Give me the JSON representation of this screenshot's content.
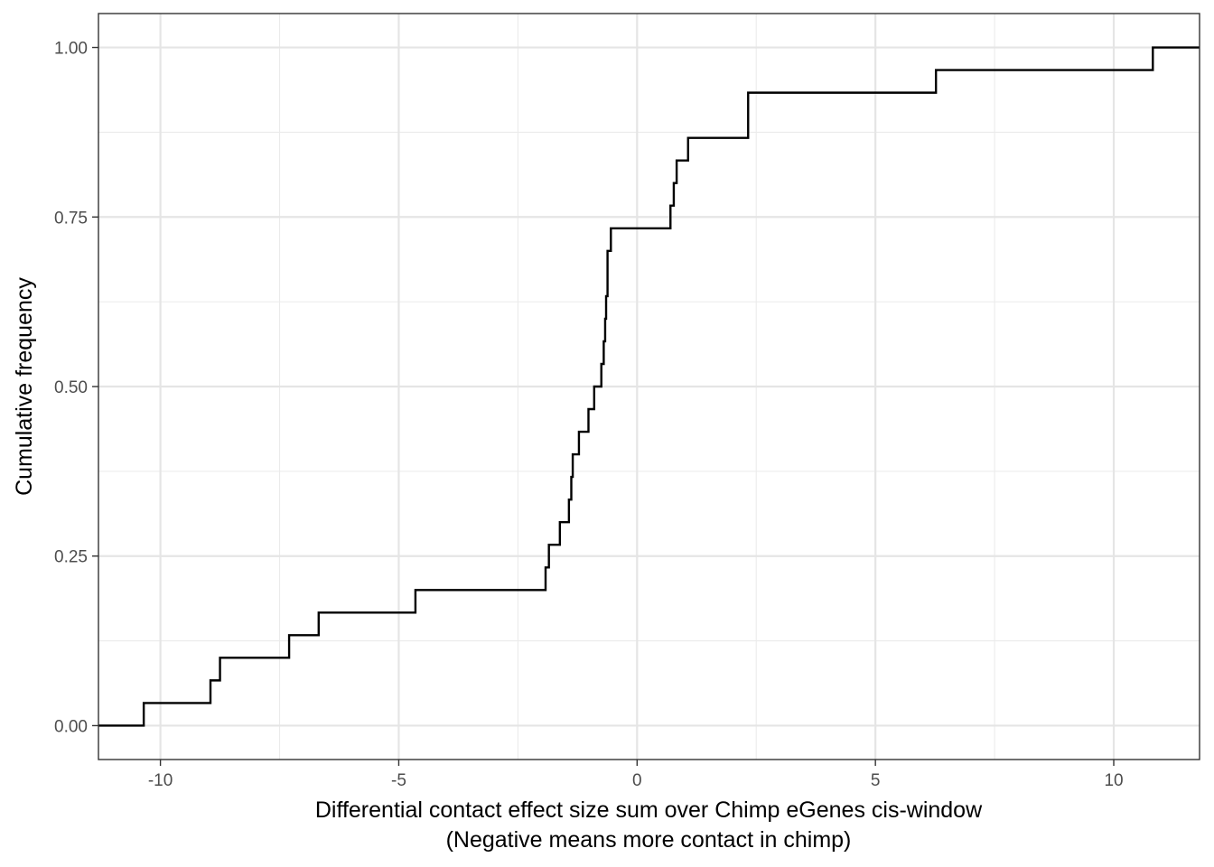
{
  "chart_data": {
    "type": "line",
    "subtype": "ecdf-step",
    "title": "",
    "xlabel_line1": "Differential contact effect size sum over Chimp eGenes cis-window",
    "xlabel_line2": "(Negative means more contact in chimp)",
    "ylabel": "Cumulative frequency",
    "xlim": [
      -11.3,
      11.8
    ],
    "ylim": [
      -0.05,
      1.05
    ],
    "x_ticks": [
      -10,
      -5,
      0,
      5,
      10
    ],
    "x_tick_labels": [
      "-10",
      "-5",
      "0",
      "5",
      "10"
    ],
    "y_ticks": [
      0,
      0.25,
      0.5,
      0.75,
      1
    ],
    "y_tick_labels": [
      "0.00",
      "0.25",
      "0.50",
      "0.75",
      "1.00"
    ],
    "x_minor_ticks": [
      -7.5,
      -2.5,
      2.5,
      7.5
    ],
    "y_minor_ticks": [
      0.125,
      0.375,
      0.625,
      0.875
    ],
    "grid": true,
    "theme": "bw",
    "line_color": "#000000",
    "series": [
      {
        "values_x": [
          -10.35,
          -8.95,
          -8.75,
          -7.3,
          -6.68,
          -4.65,
          -1.92,
          -1.85,
          -1.62,
          -1.43,
          -1.38,
          -1.35,
          -1.22,
          -1.02,
          -0.9,
          -0.75,
          -0.7,
          -0.67,
          -0.65,
          -0.62,
          -0.55,
          0.7,
          0.77,
          0.83,
          1.07,
          2.33,
          6.27,
          10.82
        ],
        "values_y": [
          0.0333,
          0.0667,
          0.1,
          0.1333,
          0.1667,
          0.2,
          0.2333,
          0.2667,
          0.3,
          0.3333,
          0.3667,
          0.4,
          0.4333,
          0.4667,
          0.5,
          0.5333,
          0.5667,
          0.6,
          0.6333,
          0.7,
          0.7333,
          0.7667,
          0.8,
          0.8333,
          0.8667,
          0.9333,
          0.9667,
          1.0
        ]
      }
    ]
  }
}
